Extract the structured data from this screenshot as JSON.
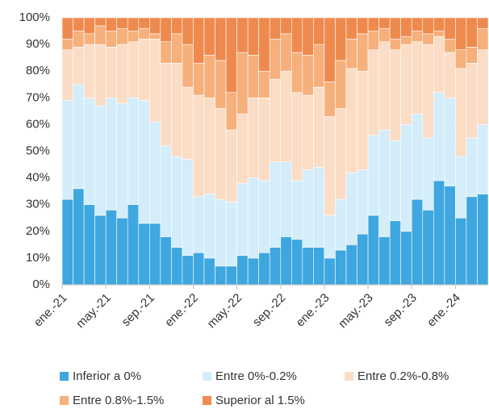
{
  "chart_data": {
    "type": "stacked_bar",
    "categories": [
      "ene.-21",
      null,
      null,
      null,
      "may.-21",
      null,
      null,
      null,
      "sep.-21",
      null,
      null,
      null,
      "ene.-22",
      null,
      null,
      null,
      "may.-22",
      null,
      null,
      null,
      "sep.-22",
      null,
      null,
      null,
      "ene.-23",
      null,
      null,
      null,
      "may.-23",
      null,
      null,
      null,
      "sep.-23",
      null,
      null,
      null,
      "ene.-24",
      null,
      null
    ],
    "series": [
      {
        "name": "Inferior a 0%",
        "color": "#3fa7df",
        "values": [
          32,
          36,
          30,
          26,
          28,
          25,
          30,
          23,
          23,
          18,
          14,
          11,
          12,
          10,
          7,
          7,
          11,
          10,
          12,
          14,
          18,
          17,
          14,
          14,
          10,
          13,
          15,
          19,
          26,
          18,
          24,
          20,
          32,
          28,
          39,
          37,
          25,
          33,
          34
        ]
      },
      {
        "name": "Entre 0%-0.2%",
        "color": "#d3edfb",
        "values": [
          37,
          39,
          40,
          41,
          42,
          43,
          40,
          46,
          38,
          34,
          34,
          36,
          21,
          24,
          25,
          24,
          27,
          30,
          27,
          32,
          28,
          22,
          29,
          30,
          16,
          19,
          27,
          24,
          30,
          40,
          30,
          40,
          32,
          27,
          33,
          33,
          23,
          22,
          26
        ]
      },
      {
        "name": "Entre 0.2%-0.8%",
        "color": "#fbdcc5",
        "values": [
          19,
          14,
          20,
          23,
          19,
          22,
          21,
          23,
          31,
          31,
          35,
          27,
          38,
          36,
          34,
          27,
          26,
          30,
          31,
          31,
          34,
          33,
          28,
          30,
          37,
          34,
          39,
          37,
          32,
          33,
          34,
          30,
          27,
          35,
          21,
          17,
          33,
          28,
          28
        ]
      },
      {
        "name": "Entre 0.8%-1.5%",
        "color": "#f5b07c",
        "values": [
          4,
          6,
          4,
          7,
          6,
          6,
          4,
          4,
          2,
          8,
          11,
          16,
          12,
          16,
          18,
          14,
          23,
          16,
          10,
          15,
          14,
          15,
          15,
          16,
          13,
          18,
          11,
          14,
          7,
          5,
          4,
          3,
          4,
          4,
          2,
          5,
          7,
          6,
          8
        ]
      },
      {
        "name": "Superior al 1.5%",
        "color": "#ef8a4e",
        "values": [
          8,
          5,
          6,
          3,
          5,
          4,
          5,
          4,
          6,
          9,
          6,
          10,
          17,
          14,
          16,
          28,
          13,
          14,
          20,
          8,
          6,
          13,
          14,
          10,
          24,
          16,
          8,
          6,
          5,
          4,
          8,
          7,
          5,
          6,
          5,
          8,
          12,
          11,
          4
        ]
      }
    ],
    "ylim": [
      0,
      100
    ],
    "yticks": [
      {
        "value": 0,
        "label": "0%"
      },
      {
        "value": 10,
        "label": "10%"
      },
      {
        "value": 20,
        "label": "20%"
      },
      {
        "value": 30,
        "label": "30%"
      },
      {
        "value": 40,
        "label": "40%"
      },
      {
        "value": 50,
        "label": "50%"
      },
      {
        "value": 60,
        "label": "60%"
      },
      {
        "value": 70,
        "label": "70%"
      },
      {
        "value": 80,
        "label": "80%"
      },
      {
        "value": 90,
        "label": "90%"
      },
      {
        "value": 100,
        "label": "100%"
      }
    ],
    "grid": true
  }
}
